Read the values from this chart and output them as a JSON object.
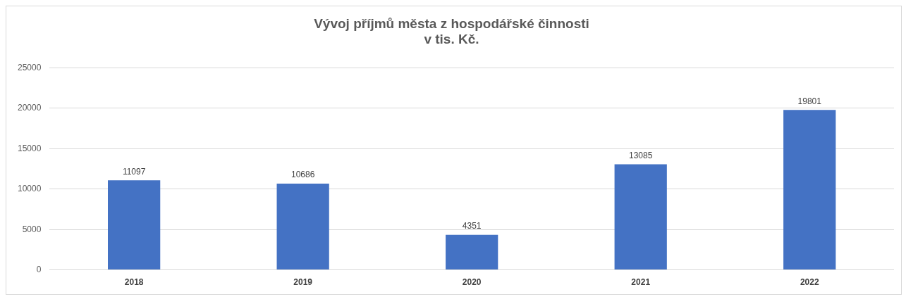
{
  "chart_data": {
    "type": "bar",
    "title": "Vývoj příjmů města z hospodářské činnosti\nv tis. Kč.",
    "categories": [
      "2018",
      "2019",
      "2020",
      "2021",
      "2022"
    ],
    "values": [
      11097,
      10686,
      4351,
      13085,
      19801
    ],
    "color": "#4472c4",
    "ylim": [
      0,
      25000
    ],
    "yticks": [
      0,
      5000,
      10000,
      15000,
      20000,
      25000
    ],
    "grid": "y",
    "data_labels": true,
    "legend": false
  }
}
